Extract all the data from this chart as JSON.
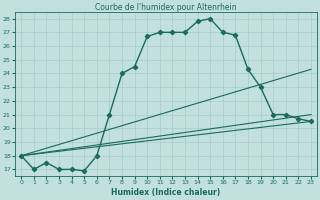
{
  "title": "Courbe de l'humidex pour Altenrhein",
  "xlabel": "Humidex (Indice chaleur)",
  "bg_color": "#c2e0dc",
  "line_color": "#1a6b5a",
  "grid_color": "#a8ccc8",
  "xlim": [
    -0.5,
    23.5
  ],
  "ylim": [
    16.5,
    28.5
  ],
  "xticks": [
    0,
    1,
    2,
    3,
    4,
    5,
    6,
    7,
    8,
    9,
    10,
    11,
    12,
    13,
    14,
    15,
    16,
    17,
    18,
    19,
    20,
    21,
    22,
    23
  ],
  "yticks": [
    17,
    18,
    19,
    20,
    21,
    22,
    23,
    24,
    25,
    26,
    27,
    28
  ],
  "main_x": [
    0,
    1,
    2,
    3,
    4,
    5,
    6,
    7,
    8,
    9,
    10,
    11,
    12,
    13,
    14,
    15,
    16,
    17,
    18,
    19,
    20,
    21,
    22,
    23
  ],
  "main_y": [
    18,
    17,
    17.5,
    17,
    17,
    16.9,
    18.0,
    21.0,
    24.0,
    24.5,
    26.7,
    27.0,
    27.0,
    27.0,
    27.8,
    28.0,
    27.0,
    26.8,
    24.3,
    23.0,
    21.0,
    21.0,
    20.7,
    20.5
  ],
  "fan_lines": [
    {
      "x": [
        0,
        23
      ],
      "y": [
        18,
        24.3
      ]
    },
    {
      "x": [
        0,
        23
      ],
      "y": [
        18,
        21.0
      ]
    },
    {
      "x": [
        0,
        23
      ],
      "y": [
        18,
        20.5
      ]
    }
  ]
}
